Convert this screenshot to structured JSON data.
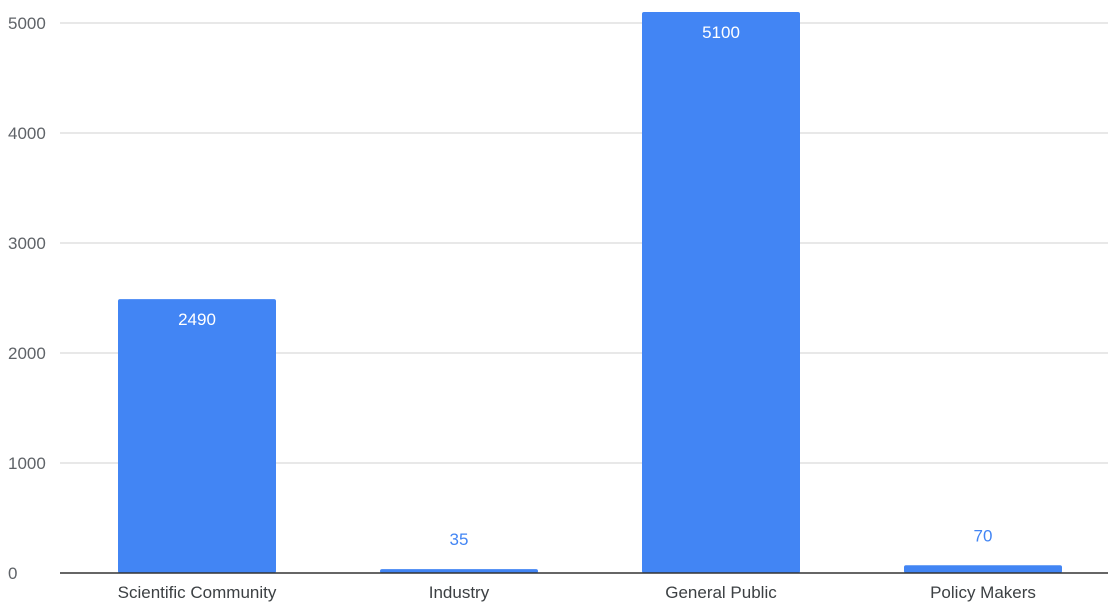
{
  "chart_data": {
    "type": "bar",
    "title": "",
    "xlabel": "",
    "ylabel": "",
    "categories": [
      "Scientific Community",
      "Industry",
      "General Public",
      "Policy Makers"
    ],
    "values": [
      2490,
      35,
      5100,
      70
    ],
    "data_labels": [
      "2490",
      "35",
      "5100",
      "70"
    ],
    "ylim": [
      0,
      5000
    ],
    "yticks": [
      0,
      1000,
      2000,
      3000,
      4000,
      5000
    ],
    "ytick_labels": [
      "0",
      "1000",
      "2000",
      "3000",
      "4000",
      "5000"
    ],
    "grid": true,
    "legend": "none",
    "colors": {
      "bar": "#4285f4",
      "label_inside": "#ffffff",
      "label_outside": "#4285f4",
      "grid": "#d0d0d0",
      "axis": "#333333"
    }
  }
}
